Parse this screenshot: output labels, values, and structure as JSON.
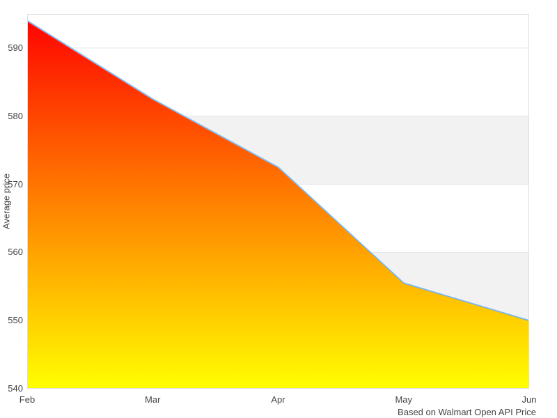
{
  "chart_data": {
    "type": "area",
    "categories": [
      "Feb",
      "Mar",
      "Apr",
      "May",
      "Jun"
    ],
    "values": [
      594,
      582.5,
      572.5,
      555.5,
      550
    ],
    "xlabel": "",
    "ylabel": "Average price",
    "caption": "Based on Walmart Open API Price",
    "ylim": [
      540,
      595
    ],
    "yticks": [
      540,
      550,
      560,
      570,
      580,
      590
    ],
    "grid": true,
    "legend_position": "none",
    "alternate_band_ranges": [
      [
        550,
        560
      ],
      [
        570,
        580
      ]
    ],
    "colors": {
      "line": "#7cb5ec",
      "fill_gradient_top": "#ff0000",
      "fill_gradient_mid": "#ff8000",
      "fill_gradient_bottom": "#ffff00",
      "alternate_band": "#f2f2f2",
      "gridline": "#e6e6e6",
      "plot_border": "#dedede",
      "label_text": "#444444",
      "background": "#ffffff"
    }
  }
}
